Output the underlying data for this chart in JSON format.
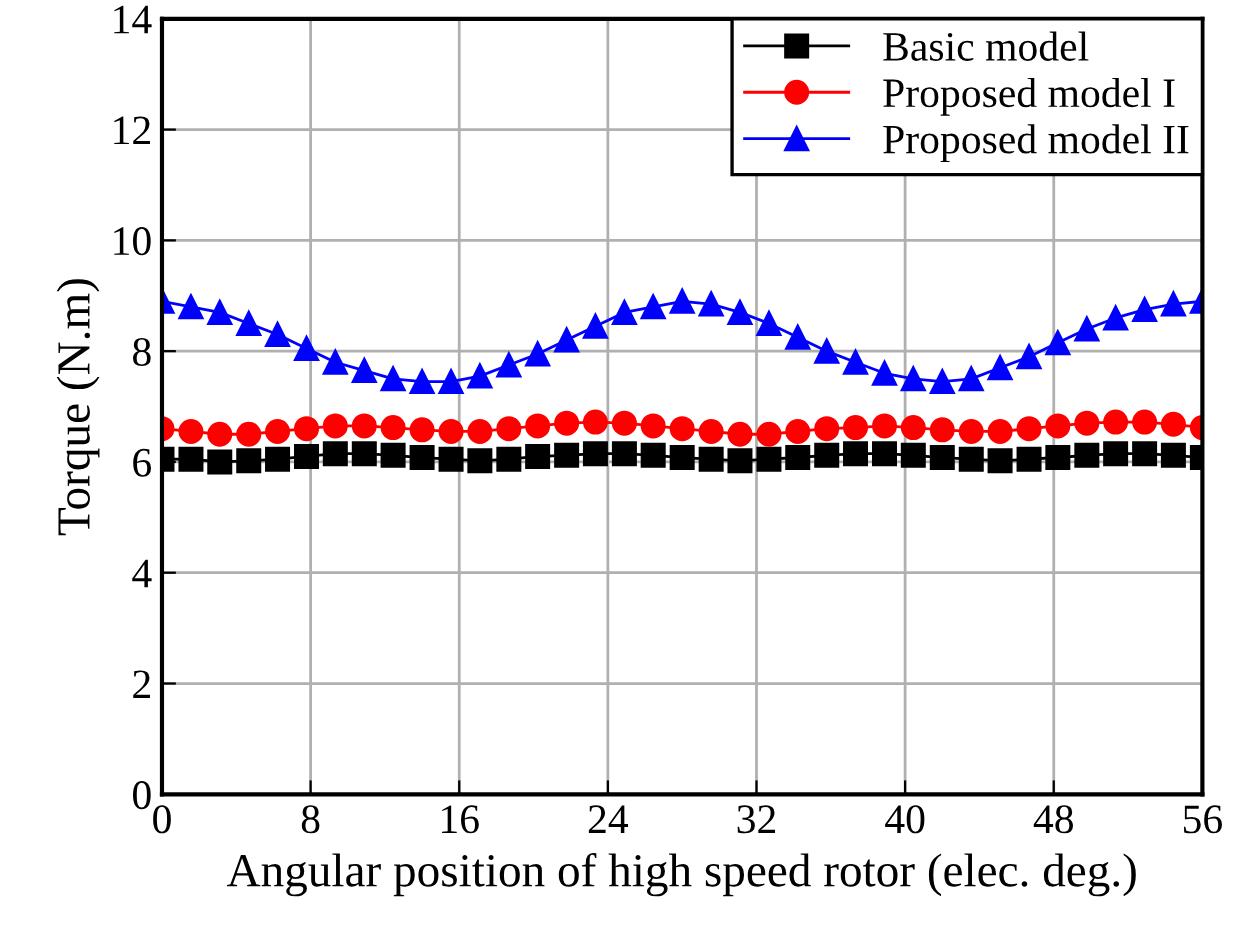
{
  "chart_data": {
    "type": "line",
    "xlabel": "Angular position of high speed rotor (elec. deg.)",
    "ylabel": "Torque (N.m)",
    "x": [
      0,
      1.56,
      3.11,
      4.67,
      6.22,
      7.78,
      9.33,
      10.89,
      12.44,
      14,
      15.56,
      17.11,
      18.67,
      20.22,
      21.78,
      23.33,
      24.89,
      26.44,
      28,
      29.56,
      31.11,
      32.67,
      34.22,
      35.78,
      37.33,
      38.89,
      40.44,
      42,
      43.56,
      45.11,
      46.67,
      48.22,
      49.78,
      51.33,
      52.89,
      54.44,
      56
    ],
    "series": [
      {
        "name": "Basic model",
        "color": "#000000",
        "marker": "square",
        "values": [
          6.05,
          6.05,
          6.0,
          6.02,
          6.05,
          6.1,
          6.15,
          6.15,
          6.12,
          6.08,
          6.05,
          6.02,
          6.05,
          6.1,
          6.12,
          6.15,
          6.15,
          6.12,
          6.08,
          6.05,
          6.02,
          6.05,
          6.08,
          6.12,
          6.15,
          6.15,
          6.12,
          6.08,
          6.05,
          6.02,
          6.05,
          6.08,
          6.12,
          6.15,
          6.15,
          6.12,
          6.08
        ]
      },
      {
        "name": "Proposed model I",
        "color": "#ff0000",
        "marker": "circle",
        "values": [
          6.6,
          6.55,
          6.5,
          6.5,
          6.55,
          6.6,
          6.65,
          6.65,
          6.62,
          6.58,
          6.55,
          6.55,
          6.6,
          6.65,
          6.7,
          6.72,
          6.7,
          6.65,
          6.6,
          6.55,
          6.5,
          6.5,
          6.55,
          6.6,
          6.62,
          6.65,
          6.62,
          6.58,
          6.55,
          6.55,
          6.6,
          6.65,
          6.7,
          6.72,
          6.72,
          6.68,
          6.62
        ]
      },
      {
        "name": "Proposed model II",
        "color": "#0000ff",
        "marker": "triangle",
        "values": [
          8.9,
          8.8,
          8.7,
          8.5,
          8.3,
          8.05,
          7.8,
          7.65,
          7.5,
          7.45,
          7.45,
          7.55,
          7.75,
          7.95,
          8.2,
          8.45,
          8.7,
          8.8,
          8.9,
          8.85,
          8.7,
          8.5,
          8.25,
          8.0,
          7.8,
          7.6,
          7.5,
          7.45,
          7.5,
          7.7,
          7.9,
          8.15,
          8.4,
          8.6,
          8.75,
          8.85,
          8.9
        ]
      }
    ],
    "xlim": [
      0,
      56
    ],
    "xticks": [
      0,
      8,
      16,
      24,
      32,
      40,
      48,
      56
    ],
    "ylim": [
      0,
      14
    ],
    "yticks": [
      0,
      2,
      4,
      6,
      8,
      10,
      12,
      14
    ],
    "grid": true,
    "legend": "top right",
    "line_style": "solid"
  }
}
